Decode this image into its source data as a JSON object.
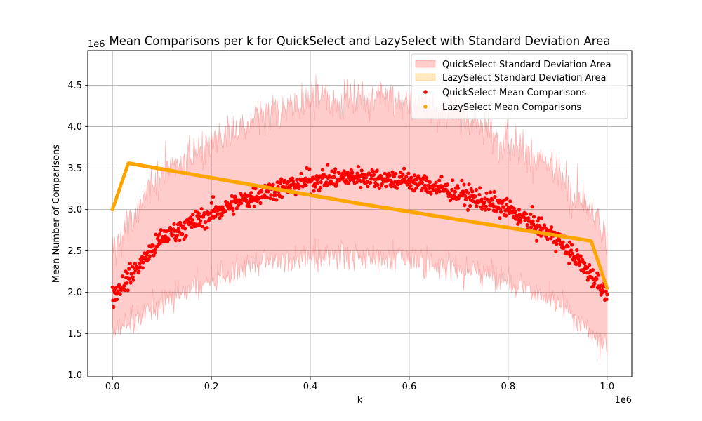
{
  "chart_data": {
    "type": "scatter",
    "title": "Mean Comparisons per k for QuickSelect and LazySelect with Standard Deviation Area",
    "xlabel": "k",
    "ylabel": "Mean Number of Comparisons",
    "x_offset_label": "1e6",
    "y_offset_label": "1e6",
    "xlim": [
      -50000,
      1050000
    ],
    "ylim": [
      0.98,
      4.92
    ],
    "xticks": [
      0,
      0.2,
      0.4,
      0.6,
      0.8,
      1.0
    ],
    "xtick_labels": [
      "0.0",
      "0.2",
      "0.4",
      "0.6",
      "0.8",
      "1.0"
    ],
    "yticks": [
      1.0,
      1.5,
      2.0,
      2.5,
      3.0,
      3.5,
      4.0,
      4.5
    ],
    "ytick_labels": [
      "1.0",
      "1.5",
      "2.0",
      "2.5",
      "3.0",
      "3.5",
      "4.0",
      "4.5"
    ],
    "grid": true,
    "legend_position": "top-right",
    "legend": [
      {
        "label": "QuickSelect Standard Deviation Area",
        "kind": "area",
        "color": "#ff0000"
      },
      {
        "label": "LazySelect Standard Deviation Area",
        "kind": "area",
        "color": "#ffa500"
      },
      {
        "label": "QuickSelect Mean Comparisons",
        "kind": "point",
        "color": "#ff0000"
      },
      {
        "label": "LazySelect Mean Comparisons",
        "kind": "point",
        "color": "#ffa500"
      }
    ],
    "series": [
      {
        "name": "QuickSelect Mean Comparisons",
        "color": "#ff0000",
        "marker": "point",
        "x": [
          0.0,
          0.1,
          0.2,
          0.3,
          0.4,
          0.5,
          0.6,
          0.7,
          0.8,
          0.9,
          1.0
        ],
        "y": [
          1.95,
          2.65,
          2.95,
          3.2,
          3.35,
          3.4,
          3.35,
          3.2,
          3.0,
          2.65,
          2.0
        ],
        "std_lower": [
          1.5,
          1.9,
          2.15,
          2.35,
          2.45,
          2.45,
          2.4,
          2.3,
          2.15,
          1.85,
          1.35
        ],
        "std_upper": [
          2.5,
          3.45,
          3.8,
          4.1,
          4.3,
          4.35,
          4.3,
          4.15,
          3.85,
          3.45,
          2.7
        ]
      },
      {
        "name": "LazySelect Mean Comparisons",
        "color": "#ffa500",
        "marker": "point",
        "x": [
          0.0,
          0.032,
          0.5,
          0.968,
          1.0
        ],
        "y": [
          3.0,
          3.56,
          3.07,
          2.62,
          2.05
        ]
      }
    ]
  }
}
